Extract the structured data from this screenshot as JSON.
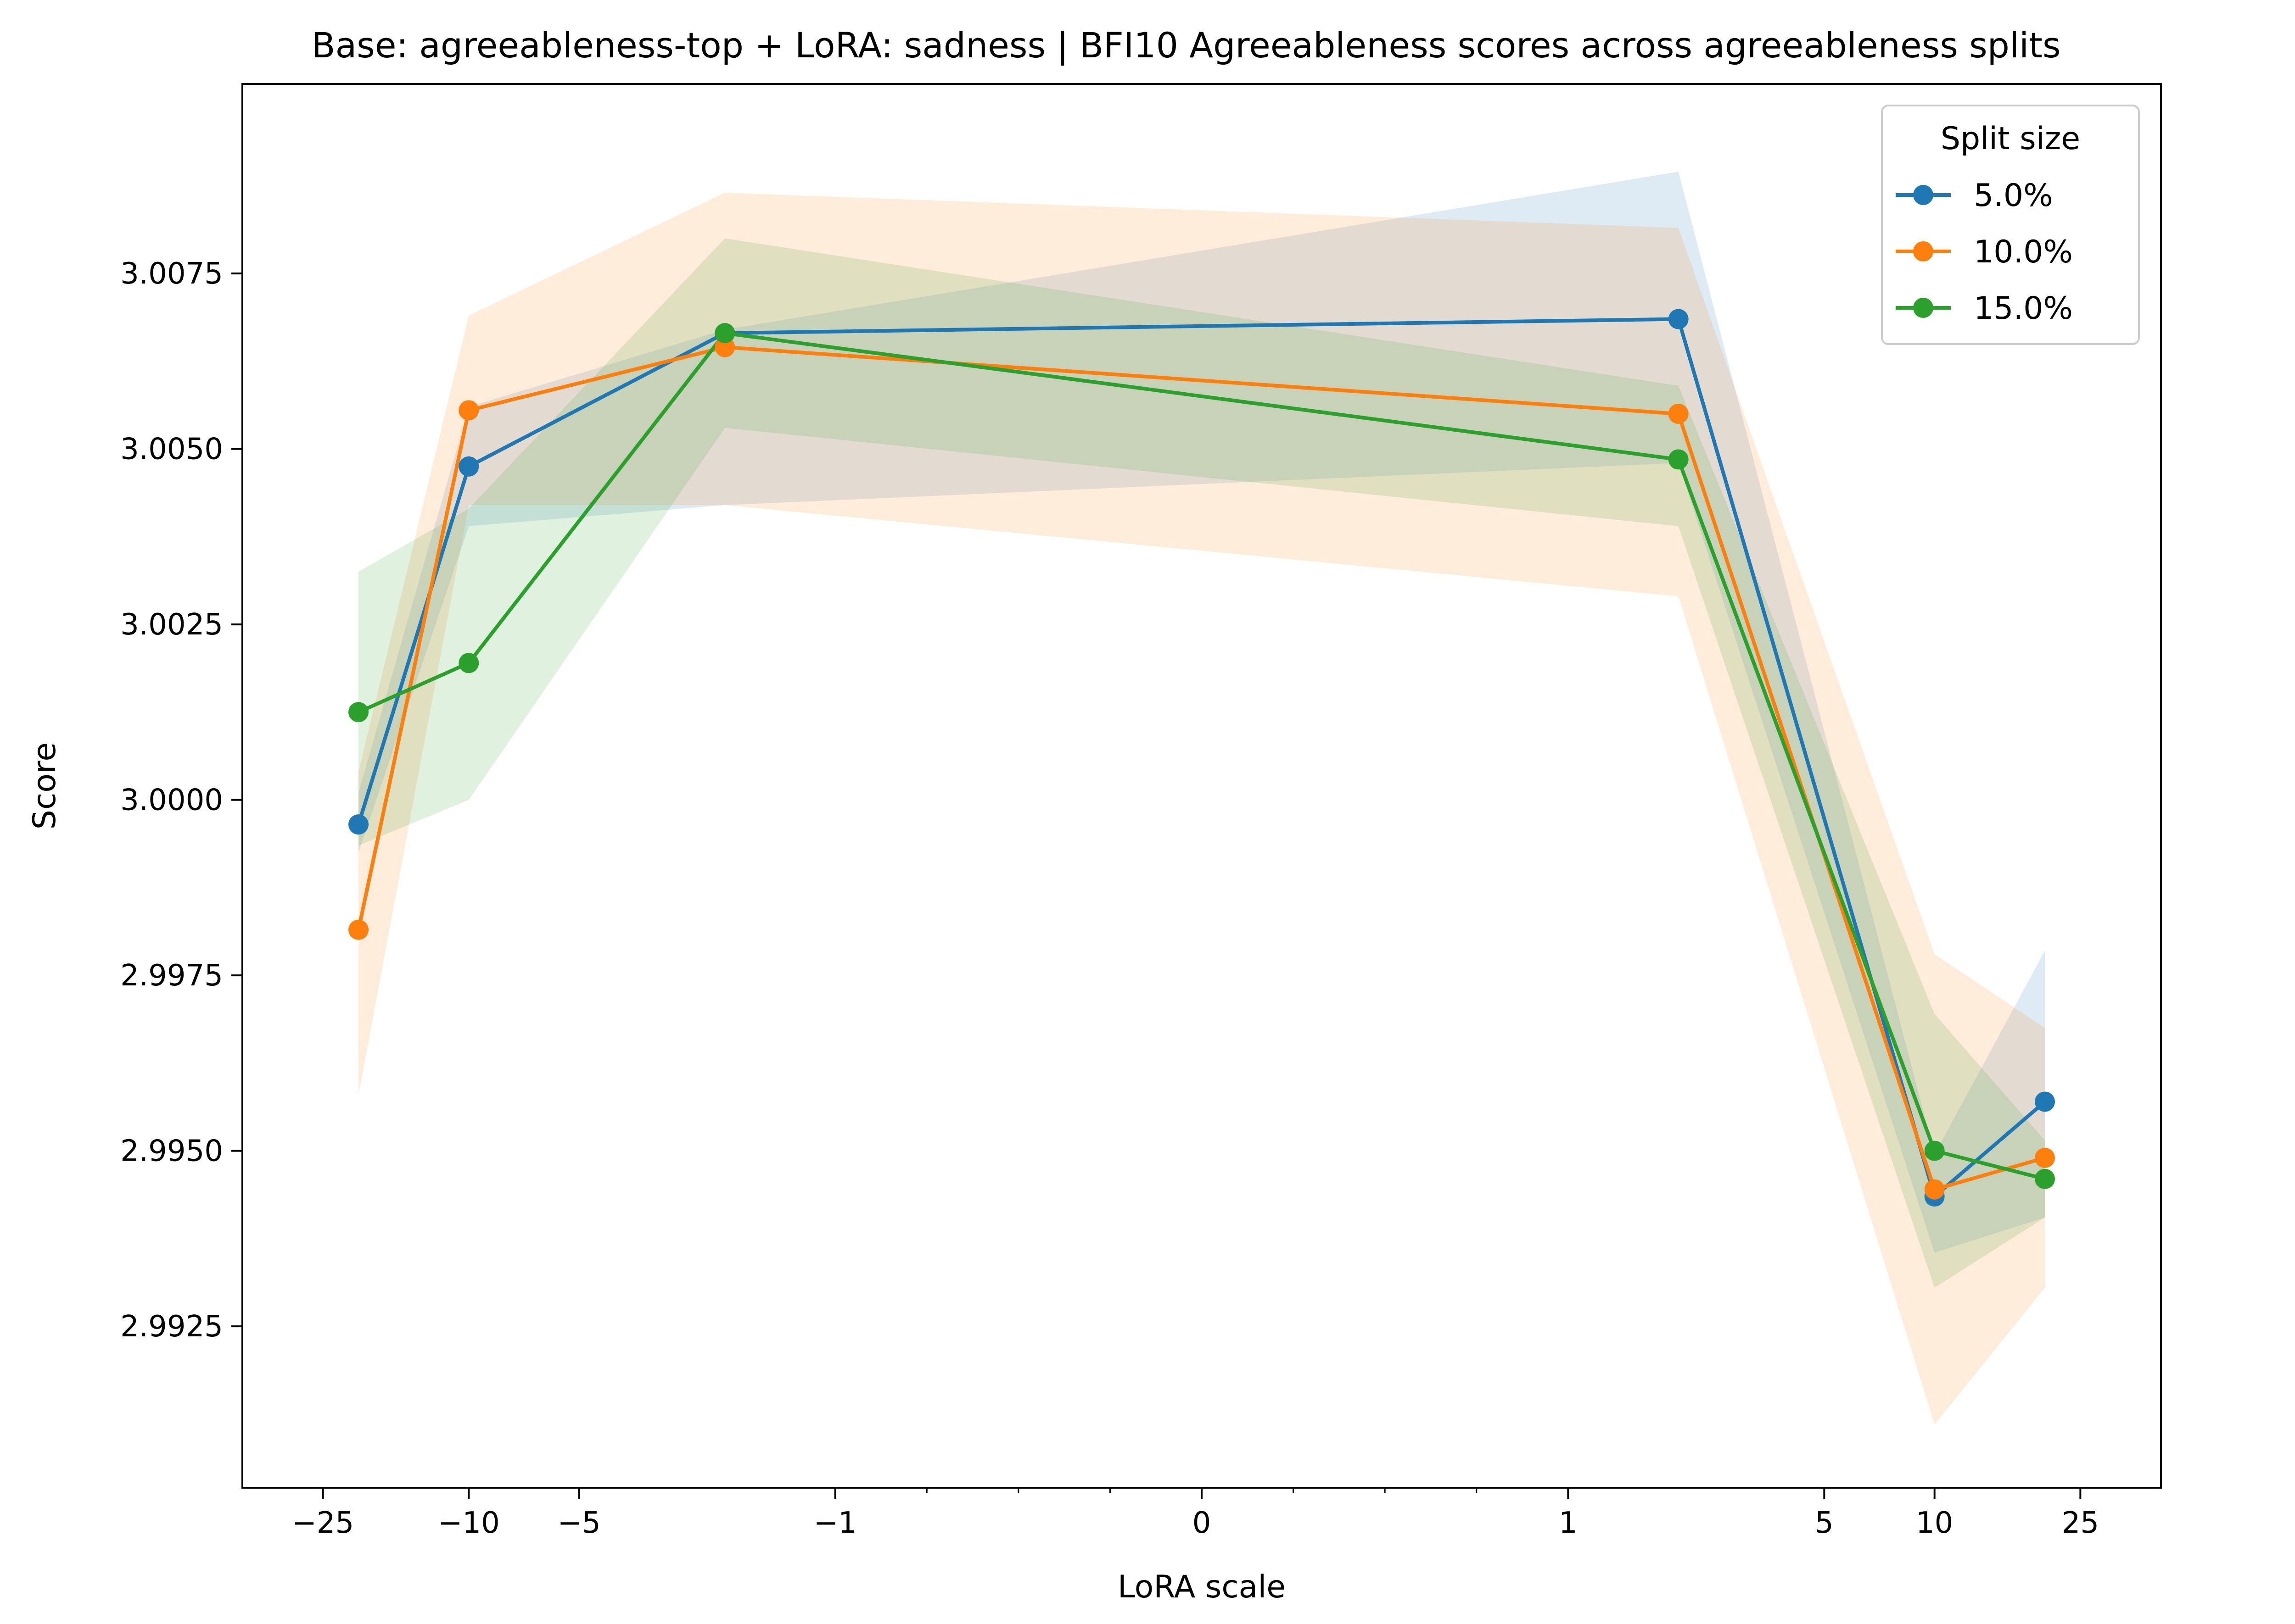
{
  "chart_data": {
    "type": "line",
    "title": "Base: agreeableness-top + LoRA: sadness | BFI10 Agreeableness scores across agreeableness splits",
    "xlabel": "LoRA scale",
    "ylabel": "Score",
    "xscale": "symlog",
    "xticks": [
      -25,
      -10,
      -5,
      -1,
      0,
      1,
      5,
      10,
      25
    ],
    "xtick_labels": [
      "−25",
      "−10",
      "−5",
      "−1",
      "0",
      "1",
      "5",
      "10",
      "25"
    ],
    "yticks": [
      2.9925,
      2.995,
      2.9975,
      3.0,
      3.0025,
      3.005,
      3.0075
    ],
    "ytick_labels": [
      "2.9925",
      "2.9950",
      "2.9975",
      "3.0000",
      "3.0025",
      "3.0050",
      "3.0075"
    ],
    "ylim": [
      2.9902,
      3.0102
    ],
    "grid": false,
    "x": [
      -20,
      -10,
      -2,
      2,
      10,
      20
    ],
    "legend": {
      "title": "Split size",
      "position": "top-right"
    },
    "series": [
      {
        "name": "5.0%",
        "color": "#1f77b4",
        "values": [
          2.99965,
          3.00475,
          3.00665,
          3.00685,
          2.99435,
          2.9957
        ],
        "lower": [
          2.99925,
          3.0039,
          3.0042,
          3.0048,
          2.99355,
          2.99405
        ],
        "upper": [
          3.0001,
          3.0056,
          3.0067,
          3.00895,
          2.99495,
          2.99785
        ]
      },
      {
        "name": "10.0%",
        "color": "#ff7f0e",
        "values": [
          2.99815,
          3.00555,
          3.00645,
          3.0055,
          2.99445,
          2.9949
        ],
        "lower": [
          2.9958,
          3.0042,
          3.0042,
          3.0029,
          2.9911,
          2.99305
        ],
        "upper": [
          3.0004,
          3.0069,
          3.00865,
          3.00815,
          2.9978,
          2.99675
        ]
      },
      {
        "name": "15.0%",
        "color": "#2ca02c",
        "values": [
          3.00125,
          3.00195,
          3.00665,
          3.00485,
          2.995,
          2.9946
        ],
        "lower": [
          2.99935,
          3.0,
          3.0053,
          3.0039,
          2.99305,
          2.99405
        ],
        "upper": [
          3.00325,
          3.00415,
          3.008,
          3.0059,
          2.99695,
          2.99515
        ]
      }
    ]
  }
}
